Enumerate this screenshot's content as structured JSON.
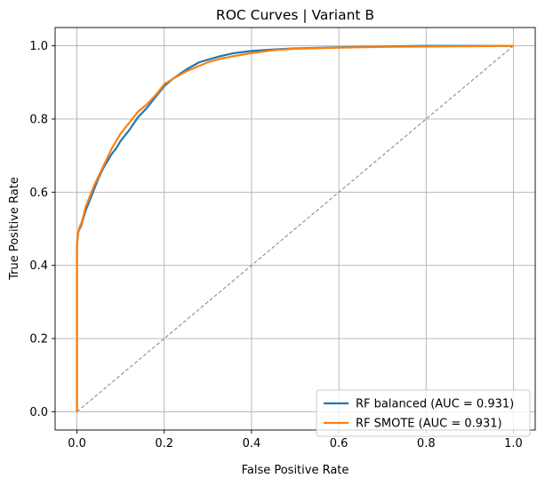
{
  "chart_data": {
    "type": "line",
    "title": "ROC Curves | Variant B",
    "xlabel": "False Positive Rate",
    "ylabel": "True Positive Rate",
    "xlim": [
      -0.05,
      1.05
    ],
    "ylim": [
      -0.05,
      1.05
    ],
    "xticks": [
      0.0,
      0.2,
      0.4,
      0.6,
      0.8,
      1.0
    ],
    "yticks": [
      0.0,
      0.2,
      0.4,
      0.6,
      0.8,
      1.0
    ],
    "xtick_labels": [
      "0.0",
      "0.2",
      "0.4",
      "0.6",
      "0.8",
      "1.0"
    ],
    "ytick_labels": [
      "0.0",
      "0.2",
      "0.4",
      "0.6",
      "0.8",
      "1.0"
    ],
    "grid": true,
    "legend_position": "lower-right",
    "diagonal": {
      "x": [
        0,
        1
      ],
      "y": [
        0,
        1
      ],
      "color": "#808080",
      "style": "dashed"
    },
    "series": [
      {
        "name": "RF balanced (AUC = 0.931)",
        "color": "#1f77b4",
        "x": [
          0,
          0,
          0.001,
          0.003,
          0.006,
          0.01,
          0.015,
          0.02,
          0.03,
          0.04,
          0.05,
          0.06,
          0.07,
          0.08,
          0.09,
          0.1,
          0.12,
          0.14,
          0.16,
          0.18,
          0.2,
          0.22,
          0.25,
          0.28,
          0.3,
          0.33,
          0.36,
          0.4,
          0.45,
          0.5,
          0.6,
          0.7,
          0.8,
          0.9,
          1.0
        ],
        "y": [
          0,
          0.45,
          0.47,
          0.49,
          0.5,
          0.51,
          0.53,
          0.55,
          0.58,
          0.61,
          0.64,
          0.665,
          0.685,
          0.705,
          0.72,
          0.74,
          0.77,
          0.805,
          0.83,
          0.86,
          0.89,
          0.91,
          0.935,
          0.955,
          0.962,
          0.972,
          0.98,
          0.986,
          0.99,
          0.993,
          0.996,
          0.998,
          1.0,
          1.0,
          1.0
        ]
      },
      {
        "name": "RF SMOTE (AUC = 0.931)",
        "color": "#ff7f0e",
        "x": [
          0,
          0,
          0.001,
          0.003,
          0.006,
          0.01,
          0.015,
          0.02,
          0.03,
          0.04,
          0.05,
          0.06,
          0.07,
          0.08,
          0.09,
          0.1,
          0.12,
          0.14,
          0.16,
          0.18,
          0.2,
          0.22,
          0.25,
          0.28,
          0.3,
          0.33,
          0.36,
          0.4,
          0.45,
          0.5,
          0.6,
          0.7,
          0.8,
          0.9,
          1.0
        ],
        "y": [
          0,
          0.46,
          0.47,
          0.49,
          0.505,
          0.515,
          0.535,
          0.56,
          0.59,
          0.62,
          0.645,
          0.67,
          0.695,
          0.72,
          0.74,
          0.76,
          0.79,
          0.82,
          0.84,
          0.865,
          0.895,
          0.91,
          0.93,
          0.945,
          0.955,
          0.965,
          0.972,
          0.98,
          0.988,
          0.992,
          0.995,
          0.997,
          0.998,
          0.999,
          1.0
        ]
      }
    ]
  }
}
